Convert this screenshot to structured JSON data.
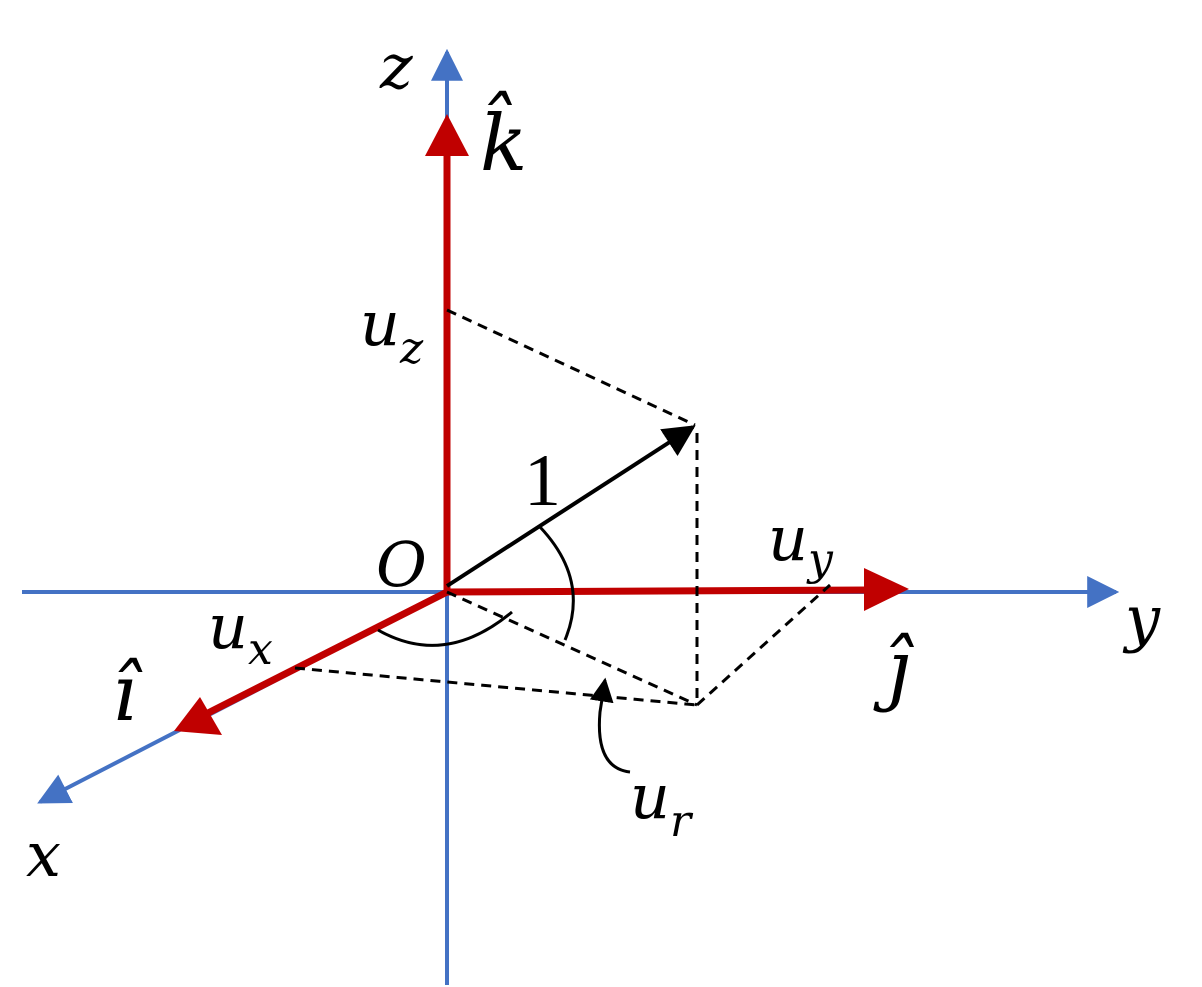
{
  "labels": {
    "z_axis": "z",
    "k_hat": "k̂",
    "u_z": {
      "base": "u",
      "sub": "z"
    },
    "magnitude": "1",
    "origin": "O",
    "u_y": {
      "base": "u",
      "sub": "y"
    },
    "y_axis": "y",
    "j_hat": "ȷ̂",
    "u_x": {
      "base": "u",
      "sub": "x"
    },
    "i_hat": "ı̂",
    "x_axis": "x",
    "u_r": {
      "base": "u",
      "sub": "r"
    }
  }
}
